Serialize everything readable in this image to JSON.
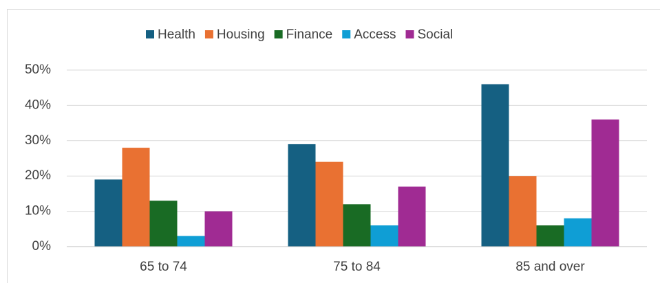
{
  "chart_data": {
    "type": "bar",
    "categories": [
      "65 to 74",
      "75 to 84",
      "85 and over"
    ],
    "series": [
      {
        "name": "Health",
        "color": "#156082",
        "values": [
          19,
          29,
          46
        ]
      },
      {
        "name": "Housing",
        "color": "#e97132",
        "values": [
          28,
          24,
          20
        ]
      },
      {
        "name": "Finance",
        "color": "#196b24",
        "values": [
          13,
          12,
          6
        ]
      },
      {
        "name": "Access",
        "color": "#0f9ed5",
        "values": [
          3,
          6,
          8
        ]
      },
      {
        "name": "Social",
        "color": "#a02b93",
        "values": [
          10,
          17,
          36
        ]
      }
    ],
    "ylim": [
      0,
      50
    ],
    "yticks": [
      {
        "value": 0,
        "label": "0%"
      },
      {
        "value": 10,
        "label": "10%"
      },
      {
        "value": 20,
        "label": "20%"
      },
      {
        "value": 30,
        "label": "30%"
      },
      {
        "value": 40,
        "label": "40%"
      },
      {
        "value": 50,
        "label": "50%"
      }
    ],
    "grid": true,
    "legend": "top"
  }
}
